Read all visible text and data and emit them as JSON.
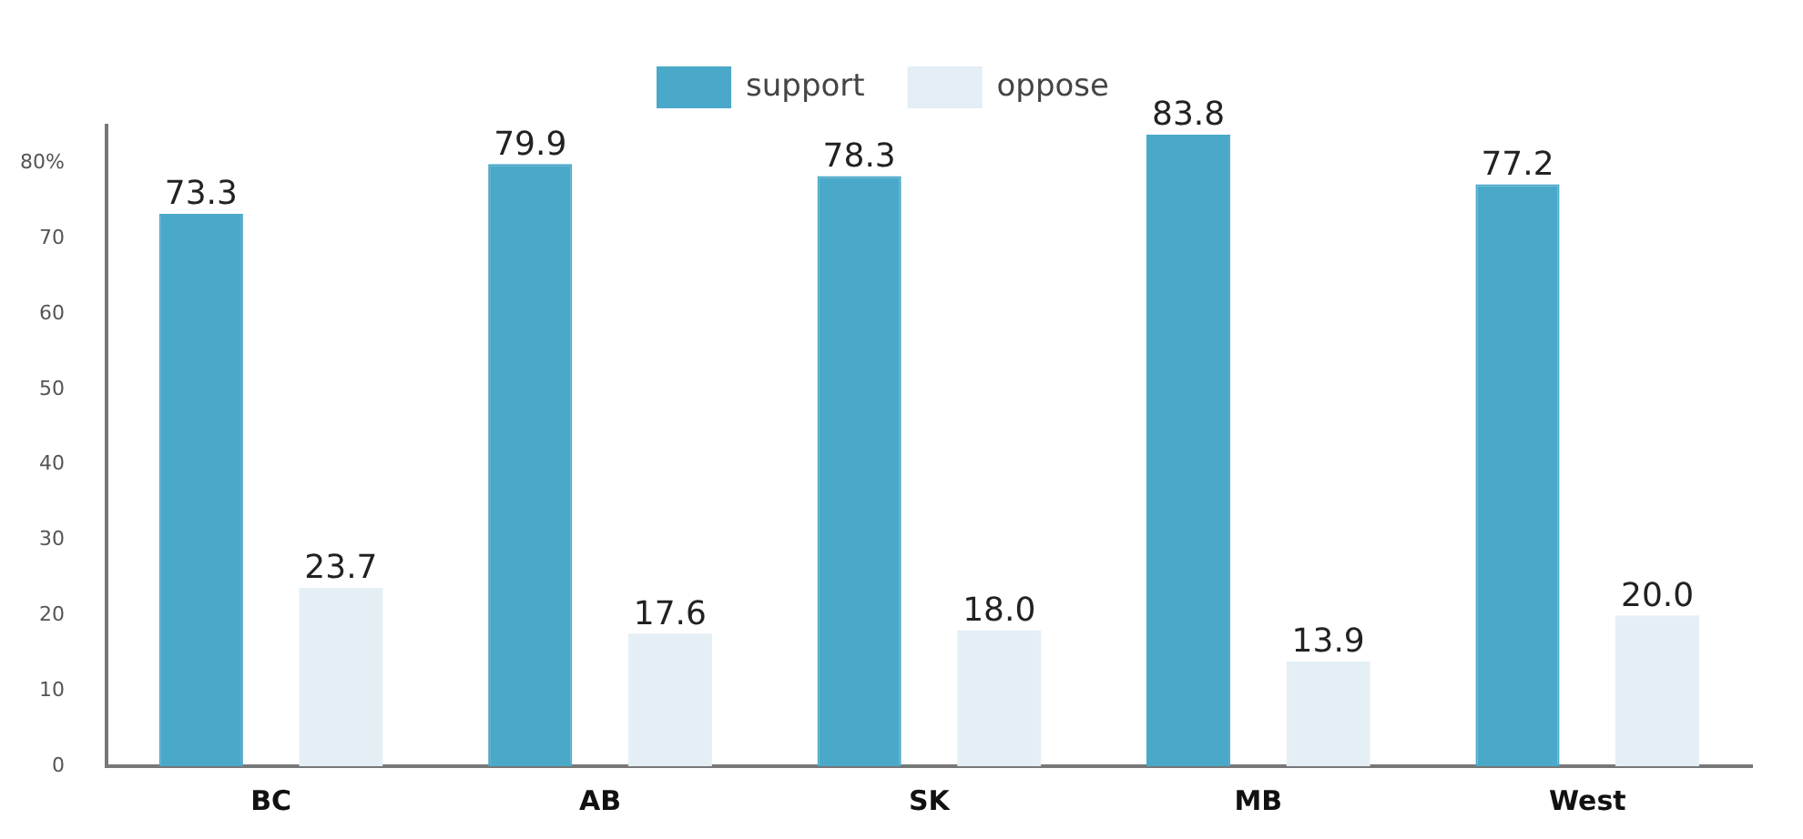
{
  "chart_data": {
    "type": "bar",
    "categories": [
      "BC",
      "AB",
      "SK",
      "MB",
      "West"
    ],
    "series": [
      {
        "name": "support",
        "color": "#4aa8c8",
        "values": [
          73.3,
          79.9,
          78.3,
          83.8,
          77.2
        ]
      },
      {
        "name": "oppose",
        "color": "#e3eef5",
        "values": [
          23.7,
          17.6,
          18.0,
          13.9,
          20.0
        ]
      }
    ],
    "ylim": [
      0,
      85
    ],
    "yticks": [
      0,
      10,
      20,
      30,
      40,
      50,
      60,
      70,
      {
        "value": 80,
        "label": "80%"
      }
    ],
    "value_labels": [
      [
        "73.3",
        "79.9",
        "78.3",
        "83.8",
        "77.2"
      ],
      [
        "23.7",
        "17.6",
        "18.0",
        "13.9",
        "20.0"
      ]
    ],
    "grid": false,
    "legend": "top"
  }
}
